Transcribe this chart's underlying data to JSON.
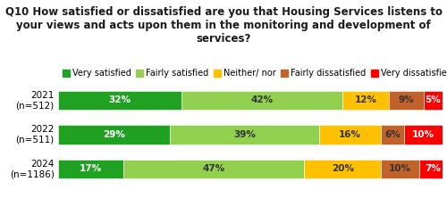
{
  "title": "Q10 How satisfied or dissatisfied are you that Housing Services listens to\nyour views and acts upon them in the monitoring and development of\nservices?",
  "title_fontsize": 8.5,
  "rows": [
    {
      "label": "2021\n(n=512)",
      "values": [
        32,
        42,
        12,
        9,
        5
      ]
    },
    {
      "label": "2022\n(n=511)",
      "values": [
        29,
        39,
        16,
        6,
        10
      ]
    },
    {
      "label": "2024\n(n=1186)",
      "values": [
        17,
        47,
        20,
        10,
        7
      ]
    }
  ],
  "categories": [
    "Very satisfied",
    "Fairly satisfied",
    "Neither/ nor",
    "Fairly dissatisfied",
    "Very dissatisfied"
  ],
  "colors": [
    "#21a121",
    "#92d050",
    "#ffc000",
    "#c0622a",
    "#ff0000"
  ],
  "bar_height": 0.55,
  "background_color": "#ffffff",
  "text_color": "#1a1a1a",
  "label_fontsize": 7.5,
  "tick_fontsize": 7.5,
  "legend_fontsize": 7.0,
  "bar_text_colors": [
    "#ffffff",
    "#333333",
    "#333333",
    "#333333",
    "#ffffff"
  ]
}
